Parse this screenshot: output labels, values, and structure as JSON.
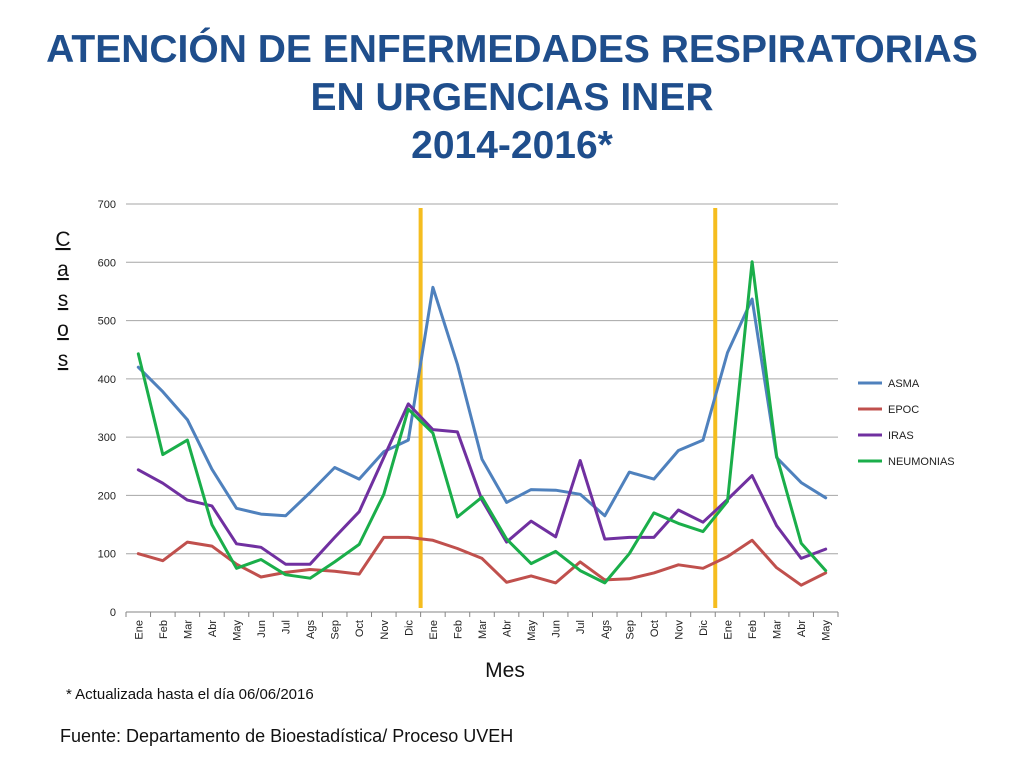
{
  "title": {
    "line1": "ATENCIÓN DE ENFERMEDADES RESPIRATORIAS",
    "line2": "EN URGENCIAS INER",
    "line3": "2014-2016*"
  },
  "footnote": "* Actualizada hasta el día 06/06/2016",
  "source": "Fuente: Departamento de Bioestadística/ Proceso UVEH",
  "chart_data": {
    "type": "line",
    "xlabel": "Mes",
    "ylabel": "Casos",
    "ylim": [
      0,
      700
    ],
    "yticks": [
      0,
      100,
      200,
      300,
      400,
      500,
      600,
      700
    ],
    "grid": true,
    "legend_position": "right",
    "categories": [
      "Ene",
      "Feb",
      "Mar",
      "Abr",
      "May",
      "Jun",
      "Jul",
      "Ags",
      "Sep",
      "Oct",
      "Nov",
      "Dic",
      "Ene",
      "Feb",
      "Mar",
      "Abr",
      "May",
      "Jun",
      "Jul",
      "Ags",
      "Sep",
      "Oct",
      "Nov",
      "Dic",
      "Ene",
      "Feb",
      "Mar",
      "Abr",
      "May"
    ],
    "year_markers": [
      {
        "between": [
          "Dic",
          "Ene"
        ],
        "after_index": 11,
        "color": "#F5BD1F"
      },
      {
        "between": [
          "Dic",
          "Ene"
        ],
        "after_index": 23,
        "color": "#F5BD1F"
      }
    ],
    "series": [
      {
        "name": "ASMA",
        "color": "#4F81BD",
        "values": [
          420,
          378,
          330,
          245,
          178,
          168,
          165,
          205,
          248,
          228,
          275,
          295,
          557,
          425,
          262,
          188,
          210,
          209,
          202,
          165,
          240,
          228,
          277,
          295,
          445,
          537,
          265,
          222,
          196
        ]
      },
      {
        "name": "EPOC",
        "color": "#C0504D",
        "values": [
          100,
          88,
          120,
          113,
          82,
          60,
          68,
          73,
          70,
          65,
          128,
          128,
          123,
          109,
          92,
          51,
          62,
          50,
          86,
          55,
          57,
          67,
          81,
          75,
          95,
          123,
          76,
          46,
          67
        ]
      },
      {
        "name": "IRAS",
        "color": "#7030A0",
        "values": [
          244,
          221,
          192,
          182,
          117,
          111,
          82,
          82,
          128,
          172,
          265,
          357,
          313,
          309,
          192,
          120,
          156,
          129,
          260,
          125,
          128,
          128,
          175,
          154,
          193,
          234,
          148,
          92,
          108
        ]
      },
      {
        "name": "NEUMONIAS",
        "color": "#1AAE4A",
        "values": [
          443,
          270,
          295,
          150,
          75,
          90,
          64,
          58,
          86,
          116,
          202,
          348,
          307,
          163,
          197,
          125,
          83,
          104,
          71,
          50,
          100,
          170,
          152,
          138,
          190,
          601,
          268,
          118,
          71
        ]
      }
    ]
  }
}
